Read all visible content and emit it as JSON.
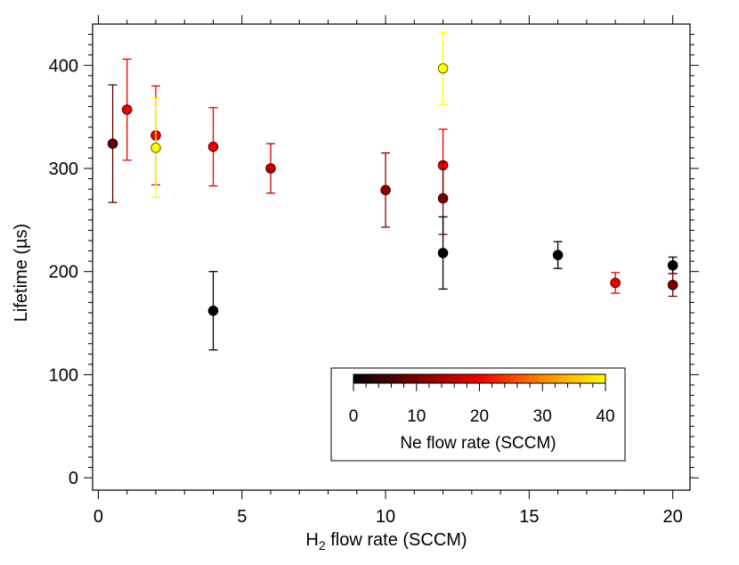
{
  "chart_data": {
    "type": "scatter",
    "title": "",
    "xlabel_main": "H",
    "xlabel_sub": "2",
    "xlabel_rest": " flow rate (SCCM)",
    "ylabel": "Lifetime (µs)",
    "xlim": [
      -0.2,
      20.6
    ],
    "ylim": [
      -12,
      440
    ],
    "x_ticks": [
      0,
      5,
      10,
      15,
      20
    ],
    "y_ticks": [
      0,
      100,
      200,
      300,
      400
    ],
    "grid": false,
    "points": [
      {
        "x": 0.5,
        "y": 324,
        "err": 57,
        "ne": 8
      },
      {
        "x": 1,
        "y": 357,
        "err": 49,
        "ne": 20
      },
      {
        "x": 2,
        "y": 332,
        "err": 48,
        "ne": 20
      },
      {
        "x": 2,
        "y": 320,
        "err": 48,
        "ne": 40
      },
      {
        "x": 4,
        "y": 321,
        "err": 38,
        "ne": 20
      },
      {
        "x": 4,
        "y": 162,
        "err": 38,
        "ne": 0
      },
      {
        "x": 6,
        "y": 300,
        "err": 24,
        "ne": 16
      },
      {
        "x": 10,
        "y": 279,
        "err": 36,
        "ne": 12
      },
      {
        "x": 12,
        "y": 397,
        "err": 35,
        "ne": 40
      },
      {
        "x": 12,
        "y": 303,
        "err": 35,
        "ne": 20
      },
      {
        "x": 12,
        "y": 271,
        "err": 35,
        "ne": 10
      },
      {
        "x": 12,
        "y": 218,
        "err": 35,
        "ne": 0
      },
      {
        "x": 16,
        "y": 216,
        "err": 13,
        "ne": 0
      },
      {
        "x": 18,
        "y": 189,
        "err": 10,
        "ne": 20
      },
      {
        "x": 20,
        "y": 206,
        "err": 8,
        "ne": 0
      },
      {
        "x": 20,
        "y": 187,
        "err": 11,
        "ne": 10
      }
    ],
    "colorbar": {
      "label": "Ne flow rate (SCCM)",
      "min": 0,
      "max": 40,
      "ticks": [
        0,
        10,
        20,
        30,
        40
      ],
      "colors": [
        "#000000",
        "#7a0000",
        "#ee0000",
        "#ff8800",
        "#ffff00"
      ],
      "placement": "bottom-right"
    }
  }
}
